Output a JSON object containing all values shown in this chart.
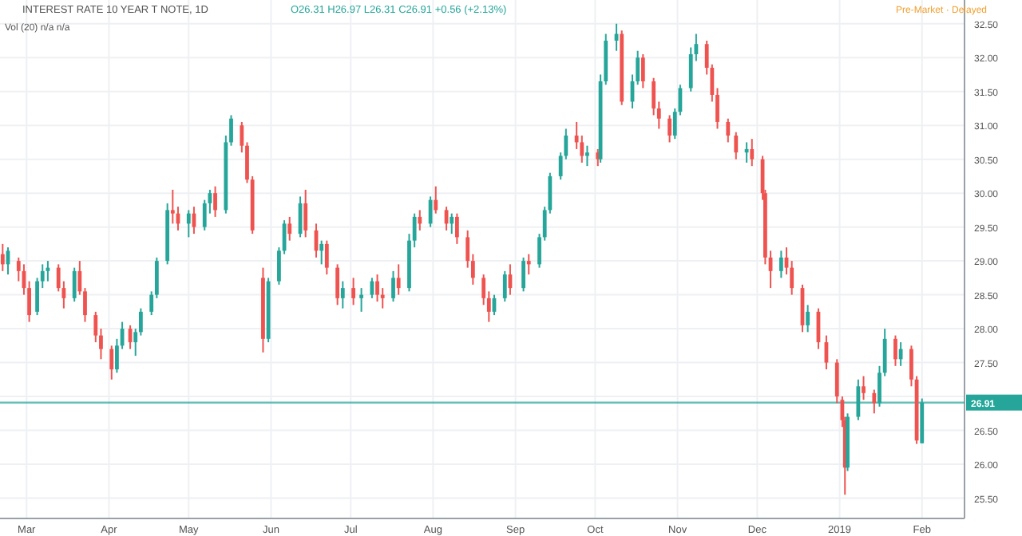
{
  "chart_data": {
    "type": "candlestick",
    "title": "INTEREST RATE 10 YEAR T NOTE, 1D",
    "annotations": [
      "O26.31 H26.97 L26.31 C26.91 +0.56 (+2.13%)",
      "Vol (20) n/a n/a",
      "Pre-Market · Delayed"
    ],
    "x": [
      "2018-02-20",
      "2018-02-22",
      "2018-02-26",
      "2018-02-28",
      "2018-03-02",
      "2018-03-05",
      "2018-03-07",
      "2018-03-09",
      "2018-03-13",
      "2018-03-15",
      "2018-03-19",
      "2018-03-21",
      "2018-03-23",
      "2018-03-27",
      "2018-03-29",
      "2018-04-02",
      "2018-04-04",
      "2018-04-06",
      "2018-04-09",
      "2018-04-11",
      "2018-04-13",
      "2018-04-17",
      "2018-04-19",
      "2018-04-23",
      "2018-04-25",
      "2018-04-27",
      "2018-05-01",
      "2018-05-03",
      "2018-05-07",
      "2018-05-09",
      "2018-05-11",
      "2018-05-15",
      "2018-05-17",
      "2018-05-21",
      "2018-05-23",
      "2018-05-25",
      "2018-05-29",
      "2018-05-31",
      "2018-06-04",
      "2018-06-06",
      "2018-06-08",
      "2018-06-12",
      "2018-06-14",
      "2018-06-18",
      "2018-06-20",
      "2018-06-22",
      "2018-06-26",
      "2018-06-28",
      "2018-07-02",
      "2018-07-05",
      "2018-07-09",
      "2018-07-11",
      "2018-07-13",
      "2018-07-17",
      "2018-07-19",
      "2018-07-23",
      "2018-07-25",
      "2018-07-27",
      "2018-07-31",
      "2018-08-02",
      "2018-08-06",
      "2018-08-08",
      "2018-08-10",
      "2018-08-14",
      "2018-08-16",
      "2018-08-20",
      "2018-08-22",
      "2018-08-24",
      "2018-08-28",
      "2018-08-30",
      "2018-09-04",
      "2018-09-06",
      "2018-09-10",
      "2018-09-12",
      "2018-09-14",
      "2018-09-18",
      "2018-09-20",
      "2018-09-24",
      "2018-09-26",
      "2018-09-28",
      "2018-10-02",
      "2018-10-03",
      "2018-10-05",
      "2018-10-09",
      "2018-10-11",
      "2018-10-15",
      "2018-10-17",
      "2018-10-19",
      "2018-10-23",
      "2018-10-25",
      "2018-10-29",
      "2018-10-31",
      "2018-11-02",
      "2018-11-06",
      "2018-11-08",
      "2018-11-12",
      "2018-11-14",
      "2018-11-16",
      "2018-11-20",
      "2018-11-23",
      "2018-11-27",
      "2018-11-29",
      "2018-12-03",
      "2018-12-04",
      "2018-12-06",
      "2018-12-10",
      "2018-12-12",
      "2018-12-14",
      "2018-12-18",
      "2018-12-20",
      "2018-12-24",
      "2018-12-27",
      "2018-12-31",
      "2019-01-02",
      "2019-01-03",
      "2019-01-04",
      "2019-01-08",
      "2019-01-10",
      "2019-01-14",
      "2019-01-16",
      "2019-01-18",
      "2019-01-22",
      "2019-01-24",
      "2019-01-28",
      "2019-01-30",
      "2019-02-01"
    ],
    "ohlc": [
      [
        29.1,
        29.25,
        28.85,
        28.95
      ],
      [
        28.95,
        29.2,
        28.8,
        29.15
      ],
      [
        29.0,
        29.05,
        28.7,
        28.85
      ],
      [
        28.85,
        28.95,
        28.5,
        28.6
      ],
      [
        28.6,
        28.7,
        28.1,
        28.2
      ],
      [
        28.25,
        28.75,
        28.2,
        28.7
      ],
      [
        28.7,
        28.95,
        28.6,
        28.85
      ],
      [
        28.85,
        29.0,
        28.7,
        28.9
      ],
      [
        28.9,
        28.95,
        28.55,
        28.6
      ],
      [
        28.6,
        28.7,
        28.3,
        28.45
      ],
      [
        28.45,
        28.9,
        28.4,
        28.85
      ],
      [
        28.85,
        29.0,
        28.5,
        28.55
      ],
      [
        28.55,
        28.6,
        28.1,
        28.2
      ],
      [
        28.2,
        28.25,
        27.8,
        27.9
      ],
      [
        27.9,
        28.0,
        27.55,
        27.7
      ],
      [
        27.7,
        27.75,
        27.25,
        27.4
      ],
      [
        27.4,
        27.85,
        27.35,
        27.75
      ],
      [
        27.75,
        28.1,
        27.7,
        28.0
      ],
      [
        28.0,
        28.05,
        27.7,
        27.8
      ],
      [
        27.8,
        28.0,
        27.6,
        27.95
      ],
      [
        27.95,
        28.3,
        27.9,
        28.25
      ],
      [
        28.25,
        28.55,
        28.2,
        28.5
      ],
      [
        28.5,
        29.05,
        28.45,
        29.0
      ],
      [
        29.0,
        29.85,
        28.95,
        29.75
      ],
      [
        29.75,
        30.05,
        29.55,
        29.7
      ],
      [
        29.7,
        29.8,
        29.45,
        29.55
      ],
      [
        29.55,
        29.75,
        29.35,
        29.7
      ],
      [
        29.7,
        29.8,
        29.4,
        29.5
      ],
      [
        29.5,
        29.9,
        29.45,
        29.85
      ],
      [
        29.85,
        30.05,
        29.7,
        30.0
      ],
      [
        30.0,
        30.1,
        29.65,
        29.75
      ],
      [
        29.75,
        30.85,
        29.7,
        30.75
      ],
      [
        30.75,
        31.15,
        30.7,
        31.1
      ],
      [
        31.0,
        31.05,
        30.6,
        30.7
      ],
      [
        30.7,
        30.75,
        30.15,
        30.2
      ],
      [
        30.2,
        30.25,
        29.4,
        29.45
      ],
      [
        28.75,
        28.9,
        27.65,
        27.85
      ],
      [
        27.85,
        28.75,
        27.8,
        28.7
      ],
      [
        28.7,
        29.2,
        28.65,
        29.15
      ],
      [
        29.15,
        29.6,
        29.1,
        29.55
      ],
      [
        29.55,
        29.65,
        29.3,
        29.4
      ],
      [
        29.4,
        29.95,
        29.35,
        29.85
      ],
      [
        29.85,
        30.05,
        29.35,
        29.45
      ],
      [
        29.45,
        29.55,
        29.05,
        29.15
      ],
      [
        29.15,
        29.3,
        28.95,
        29.25
      ],
      [
        29.25,
        29.3,
        28.8,
        28.9
      ],
      [
        28.9,
        28.95,
        28.35,
        28.45
      ],
      [
        28.45,
        28.7,
        28.3,
        28.6
      ],
      [
        28.6,
        28.75,
        28.35,
        28.45
      ],
      [
        28.45,
        28.6,
        28.25,
        28.5
      ],
      [
        28.5,
        28.75,
        28.45,
        28.7
      ],
      [
        28.7,
        28.8,
        28.4,
        28.5
      ],
      [
        28.5,
        28.6,
        28.3,
        28.45
      ],
      [
        28.45,
        28.85,
        28.4,
        28.75
      ],
      [
        28.75,
        28.95,
        28.5,
        28.6
      ],
      [
        28.6,
        29.4,
        28.55,
        29.3
      ],
      [
        29.3,
        29.7,
        29.2,
        29.65
      ],
      [
        29.65,
        29.75,
        29.45,
        29.55
      ],
      [
        29.55,
        29.95,
        29.5,
        29.9
      ],
      [
        29.9,
        30.1,
        29.7,
        29.75
      ],
      [
        29.75,
        29.8,
        29.45,
        29.55
      ],
      [
        29.55,
        29.7,
        29.4,
        29.65
      ],
      [
        29.65,
        29.7,
        29.25,
        29.35
      ],
      [
        29.35,
        29.45,
        28.9,
        29.0
      ],
      [
        29.0,
        29.1,
        28.65,
        28.75
      ],
      [
        28.75,
        28.8,
        28.35,
        28.45
      ],
      [
        28.45,
        28.55,
        28.1,
        28.25
      ],
      [
        28.25,
        28.5,
        28.2,
        28.45
      ],
      [
        28.45,
        28.85,
        28.4,
        28.8
      ],
      [
        28.8,
        28.95,
        28.5,
        28.6
      ],
      [
        28.6,
        29.05,
        28.55,
        29.0
      ],
      [
        29.0,
        29.1,
        28.8,
        28.95
      ],
      [
        28.95,
        29.4,
        28.9,
        29.35
      ],
      [
        29.35,
        29.8,
        29.3,
        29.75
      ],
      [
        29.75,
        30.3,
        29.7,
        30.25
      ],
      [
        30.25,
        30.6,
        30.2,
        30.55
      ],
      [
        30.55,
        30.95,
        30.5,
        30.85
      ],
      [
        30.85,
        31.05,
        30.65,
        30.75
      ],
      [
        30.75,
        30.85,
        30.45,
        30.55
      ],
      [
        30.55,
        30.7,
        30.4,
        30.6
      ],
      [
        30.6,
        30.65,
        30.4,
        30.5
      ],
      [
        30.5,
        31.75,
        30.45,
        31.65
      ],
      [
        31.65,
        32.35,
        31.6,
        32.25
      ],
      [
        32.25,
        32.5,
        32.1,
        32.35
      ],
      [
        32.35,
        32.4,
        31.3,
        31.35
      ],
      [
        31.35,
        31.75,
        31.25,
        31.65
      ],
      [
        31.65,
        32.1,
        31.6,
        32.0
      ],
      [
        32.0,
        32.05,
        31.55,
        31.65
      ],
      [
        31.65,
        31.7,
        31.15,
        31.25
      ],
      [
        31.25,
        31.35,
        30.95,
        31.1
      ],
      [
        31.1,
        31.15,
        30.75,
        30.85
      ],
      [
        30.85,
        31.25,
        30.8,
        31.2
      ],
      [
        31.2,
        31.6,
        31.15,
        31.55
      ],
      [
        31.55,
        32.15,
        31.5,
        32.05
      ],
      [
        32.05,
        32.35,
        31.95,
        32.2
      ],
      [
        32.2,
        32.25,
        31.75,
        31.85
      ],
      [
        31.85,
        31.9,
        31.35,
        31.45
      ],
      [
        31.45,
        31.55,
        30.95,
        31.05
      ],
      [
        31.05,
        31.1,
        30.75,
        30.85
      ],
      [
        30.85,
        30.9,
        30.5,
        30.6
      ],
      [
        30.6,
        30.75,
        30.45,
        30.65
      ],
      [
        30.65,
        30.8,
        30.4,
        30.5
      ],
      [
        30.5,
        30.55,
        29.9,
        30.0
      ],
      [
        30.0,
        30.05,
        28.95,
        29.05
      ],
      [
        29.05,
        29.15,
        28.6,
        28.85
      ],
      [
        28.85,
        29.15,
        28.75,
        29.05
      ],
      [
        29.05,
        29.2,
        28.8,
        28.9
      ],
      [
        28.9,
        29.0,
        28.5,
        28.6
      ],
      [
        28.6,
        28.65,
        27.95,
        28.05
      ],
      [
        28.05,
        28.35,
        27.95,
        28.25
      ],
      [
        28.25,
        28.3,
        27.7,
        27.8
      ],
      [
        27.8,
        27.9,
        27.4,
        27.5
      ],
      [
        27.5,
        27.55,
        26.9,
        27.0
      ],
      [
        26.95,
        27.0,
        26.55,
        26.65
      ],
      [
        26.65,
        26.7,
        25.55,
        25.95
      ],
      [
        25.95,
        26.75,
        25.9,
        26.7
      ],
      [
        26.7,
        27.25,
        26.65,
        27.15
      ],
      [
        27.15,
        27.3,
        26.95,
        27.05
      ],
      [
        27.05,
        27.1,
        26.75,
        26.9
      ],
      [
        26.9,
        27.45,
        26.85,
        27.35
      ],
      [
        27.35,
        28.0,
        27.3,
        27.85
      ],
      [
        27.85,
        27.9,
        27.45,
        27.55
      ],
      [
        27.55,
        27.8,
        27.45,
        27.7
      ],
      [
        27.7,
        27.75,
        27.15,
        27.25
      ],
      [
        27.25,
        27.3,
        26.3,
        26.35
      ],
      [
        26.31,
        26.97,
        26.31,
        26.91
      ]
    ],
    "xlim": [
      "2018-02-19",
      "2019-02-17"
    ],
    "xticks": [
      {
        "value": "2018-03-01",
        "label": "Mar"
      },
      {
        "value": "2018-04-01",
        "label": "Apr"
      },
      {
        "value": "2018-05-01",
        "label": "May"
      },
      {
        "value": "2018-06-01",
        "label": "Jun"
      },
      {
        "value": "2018-07-01",
        "label": "Jul"
      },
      {
        "value": "2018-08-01",
        "label": "Aug"
      },
      {
        "value": "2018-09-01",
        "label": "Sep"
      },
      {
        "value": "2018-10-01",
        "label": "Oct"
      },
      {
        "value": "2018-11-01",
        "label": "Nov"
      },
      {
        "value": "2018-12-01",
        "label": "Dec"
      },
      {
        "value": "2019-01-01",
        "label": "2019"
      },
      {
        "value": "2019-02-01",
        "label": "Feb"
      }
    ],
    "ylim": [
      25.2,
      32.85
    ],
    "yticks": [
      {
        "value": 25.5,
        "label": "25.50"
      },
      {
        "value": 26,
        "label": "26.00"
      },
      {
        "value": 26.5,
        "label": "26.50"
      },
      {
        "value": 27,
        "label": null
      },
      {
        "value": 27.5,
        "label": "27.50"
      },
      {
        "value": 28,
        "label": "28.00"
      },
      {
        "value": 28.5,
        "label": "28.50"
      },
      {
        "value": 29,
        "label": "29.00"
      },
      {
        "value": 29.5,
        "label": "29.50"
      },
      {
        "value": 30,
        "label": "30.00"
      },
      {
        "value": 30.5,
        "label": "30.50"
      },
      {
        "value": 31,
        "label": "31.00"
      },
      {
        "value": 31.5,
        "label": "31.50"
      },
      {
        "value": 32,
        "label": "32.00"
      },
      {
        "value": 32.5,
        "label": "32.50"
      }
    ],
    "ref_lines": [
      {
        "axis": "y",
        "value": 26.91,
        "label": "26.91",
        "color": "#26a69a"
      }
    ],
    "grid": true
  }
}
